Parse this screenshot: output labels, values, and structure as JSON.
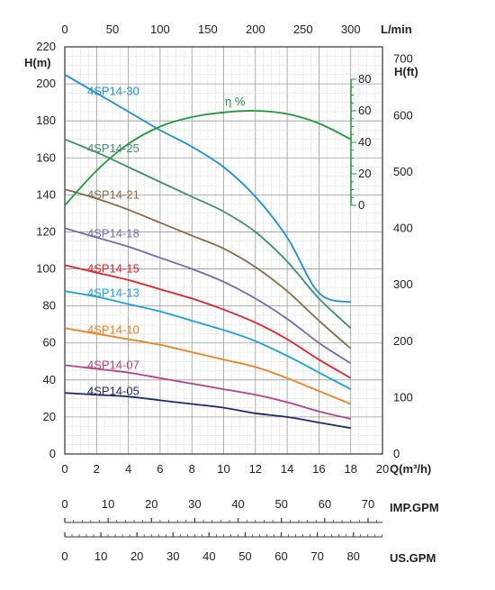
{
  "chart_data": {
    "type": "line",
    "title": "",
    "axes": {
      "x_bottom": {
        "label": "Q(m³/h)",
        "range": [
          0,
          20
        ],
        "ticks": [
          0,
          2,
          4,
          6,
          8,
          10,
          12,
          14,
          16,
          18,
          20
        ]
      },
      "x_top": {
        "label": "L/min",
        "range": [
          0,
          333.3
        ],
        "ticks": [
          0,
          50,
          100,
          150,
          200,
          250,
          300
        ]
      },
      "y_left": {
        "label": "H(m)",
        "range": [
          0,
          220
        ],
        "ticks": [
          0,
          20,
          40,
          60,
          80,
          100,
          120,
          140,
          160,
          180,
          200,
          220
        ]
      },
      "y_right": {
        "label": "H(ft)",
        "range": [
          0,
          721.8
        ],
        "ticks": [
          0,
          100,
          200,
          300,
          400,
          500,
          600,
          700
        ]
      },
      "efficiency": {
        "label": "η %",
        "color": "#1f9a3a",
        "ticks": [
          0,
          20,
          40,
          60,
          80
        ],
        "range": [
          0,
          80
        ]
      },
      "imp_gpm": {
        "label": "IMP.GPM",
        "range": [
          0,
          73.33
        ],
        "ticks": [
          0,
          10,
          20,
          30,
          40,
          50,
          60,
          70
        ]
      },
      "us_gpm": {
        "label": "US.GPM",
        "range": [
          0,
          88.06
        ],
        "ticks": [
          0,
          10,
          20,
          30,
          40,
          50,
          60,
          70,
          80
        ]
      },
      "grid": true
    },
    "x": [
      0,
      2,
      4,
      6,
      8,
      10,
      12,
      14,
      16,
      18
    ],
    "series": [
      {
        "name": "4SP14-30",
        "color": "#1a8fd6",
        "values": [
          205,
          195,
          185,
          175,
          166,
          155,
          139,
          117,
          87,
          82
        ]
      },
      {
        "name": "4SP14-25",
        "color": "#3f8f76",
        "values": [
          170,
          163,
          155,
          147,
          139,
          131,
          120,
          104,
          84,
          68
        ]
      },
      {
        "name": "4SP14-21",
        "color": "#8b6a48",
        "values": [
          143,
          138,
          132,
          125,
          118,
          111,
          101,
          88,
          72,
          57
        ]
      },
      {
        "name": "4SP14-18",
        "color": "#7a68b0",
        "values": [
          122,
          117,
          112,
          106,
          100,
          93,
          84,
          73,
          60,
          49
        ]
      },
      {
        "name": "4SP14-15",
        "color": "#e3222a",
        "values": [
          102,
          98,
          94,
          89,
          84,
          78,
          71,
          62,
          51,
          41
        ]
      },
      {
        "name": "4SP14-13",
        "color": "#1aa0dc",
        "values": [
          88,
          85,
          81,
          77,
          72,
          67,
          61,
          53,
          44,
          35
        ]
      },
      {
        "name": "4SP14-10",
        "color": "#f07f1f",
        "values": [
          68,
          65,
          62,
          59,
          55,
          51,
          47,
          41,
          34,
          27
        ]
      },
      {
        "name": "4SP14-07",
        "color": "#b5418c",
        "values": [
          48,
          46,
          44,
          41,
          38,
          35,
          32,
          28,
          23,
          19
        ]
      },
      {
        "name": "4SP14-05",
        "color": "#1f2a6b",
        "values": [
          33,
          32,
          31,
          29,
          27,
          25,
          22,
          20,
          17,
          14
        ]
      }
    ],
    "efficiency_curve": {
      "name": "η %",
      "color": "#1f9a3a",
      "x": [
        0,
        2,
        4,
        6,
        8,
        10,
        12,
        14,
        16,
        18
      ],
      "values": [
        0,
        22,
        39,
        50,
        56,
        59,
        60,
        58,
        52,
        42
      ]
    }
  }
}
